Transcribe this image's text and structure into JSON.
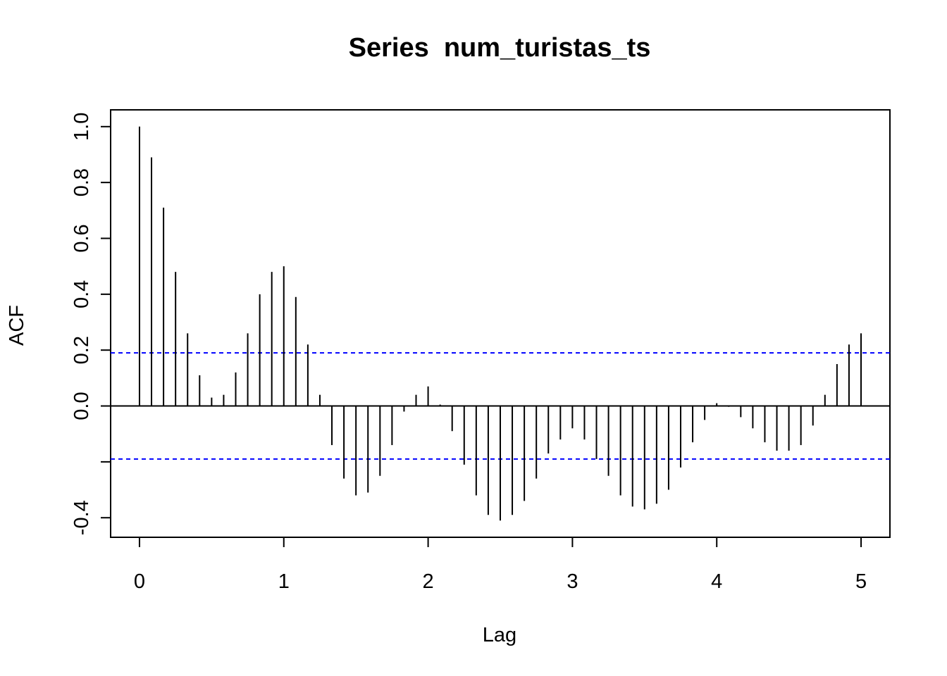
{
  "chart_data": {
    "type": "bar",
    "title": "Series  num_turistas_ts",
    "xlabel": "Lag",
    "ylabel": "ACF",
    "xlim": [
      -0.2,
      5.2
    ],
    "ylim": [
      -0.47,
      1.06
    ],
    "x_ticks": [
      0,
      1,
      2,
      3,
      4,
      5
    ],
    "x_tick_labels": [
      "0",
      "1",
      "2",
      "3",
      "4",
      "5"
    ],
    "y_ticks": [
      -0.4,
      0.0,
      0.2,
      0.4,
      0.6,
      0.8,
      1.0
    ],
    "y_tick_labels": [
      "-0.4",
      "0.0",
      "0.2",
      "0.4",
      "0.6",
      "0.8",
      "1.0"
    ],
    "y_ticks_unlabeled": [
      -0.2
    ],
    "confidence_bound": 0.19,
    "colors": {
      "spike": "#000000",
      "confidence": "#0000ff",
      "zero_line": "#000000"
    },
    "lag_step": 0.08333,
    "acf": [
      1.0,
      0.89,
      0.71,
      0.48,
      0.26,
      0.11,
      0.03,
      0.04,
      0.12,
      0.26,
      0.4,
      0.48,
      0.5,
      0.39,
      0.22,
      0.04,
      -0.14,
      -0.26,
      -0.32,
      -0.31,
      -0.25,
      -0.14,
      -0.02,
      0.04,
      0.07,
      0.005,
      -0.09,
      -0.21,
      -0.32,
      -0.39,
      -0.41,
      -0.39,
      -0.34,
      -0.26,
      -0.17,
      -0.12,
      -0.08,
      -0.12,
      -0.19,
      -0.25,
      -0.32,
      -0.36,
      -0.37,
      -0.35,
      -0.3,
      -0.22,
      -0.13,
      -0.05,
      0.01,
      -0.003,
      -0.04,
      -0.08,
      -0.13,
      -0.16,
      -0.16,
      -0.14,
      -0.07,
      0.04,
      0.15,
      0.22,
      0.26
    ]
  }
}
